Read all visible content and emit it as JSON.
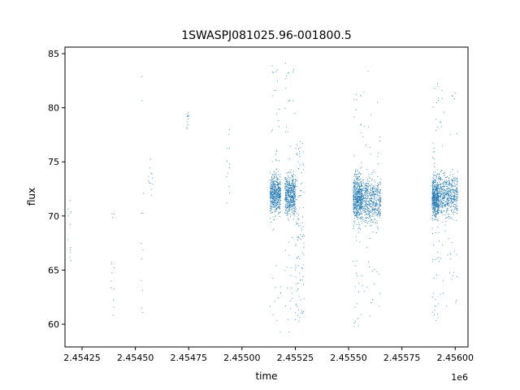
{
  "chart_data": {
    "type": "scatter",
    "title": "1SWASPJ081025.96-001800.5",
    "xlabel": "time",
    "ylabel": "flux",
    "x_offset_label": "1e6",
    "xlim": [
      2.45417,
      2.45606
    ],
    "ylim": [
      57.9,
      85.6
    ],
    "xticks": [
      2.45425,
      2.4545,
      2.45475,
      2.455,
      2.45525,
      2.4555,
      2.45575,
      2.456
    ],
    "xtick_labels": [
      "2.45425",
      "2.45450",
      "2.45475",
      "2.45500",
      "2.45525",
      "2.45550",
      "2.45575",
      "2.45600"
    ],
    "yticks": [
      60,
      65,
      70,
      75,
      80,
      85
    ],
    "ytick_labels": [
      "60",
      "65",
      "70",
      "75",
      "80",
      "85"
    ],
    "grid": false,
    "marker_color": "#1f77b4",
    "clusters": [
      {
        "x_range": [
          2.45418,
          2.4542
        ],
        "y_range": [
          64.6,
          71.5
        ],
        "density": "sparse"
      },
      {
        "x_range": [
          2.45438,
          2.4544
        ],
        "y_range": [
          59.5,
          71.8
        ],
        "density": "sparse"
      },
      {
        "x_range": [
          2.45452,
          2.45454
        ],
        "y_range": [
          61.0,
          84.2
        ],
        "density": "sparse"
      },
      {
        "x_range": [
          2.45456,
          2.45458
        ],
        "y_range": [
          70.5,
          75.5
        ],
        "density": "sparse"
      },
      {
        "x_range": [
          2.45474,
          2.45475
        ],
        "y_range": [
          77.6,
          79.6
        ],
        "density": "sparse"
      },
      {
        "x_range": [
          2.45492,
          2.45495
        ],
        "y_range": [
          71.2,
          78.6
        ],
        "density": "sparse"
      },
      {
        "x_range": [
          2.45513,
          2.45518
        ],
        "y_range": [
          68.0,
          76.0
        ],
        "core_range": [
          68.5,
          75.5
        ],
        "outlier_range": [
          59.2,
          84.2
        ],
        "density": "dense"
      },
      {
        "x_range": [
          2.4552,
          2.45525
        ],
        "y_range": [
          68.0,
          76.0
        ],
        "core_range": [
          68.5,
          75.5
        ],
        "outlier_range": [
          59.2,
          84.2
        ],
        "density": "dense"
      },
      {
        "x_range": [
          2.45525,
          2.45529
        ],
        "y_range": [
          60.0,
          77.0
        ],
        "density": "medium"
      },
      {
        "x_range": [
          2.45552,
          2.45556
        ],
        "y_range": [
          66.5,
          76.0
        ],
        "core_range": [
          67.5,
          76.0
        ],
        "outlier_range": [
          59.5,
          82.5
        ],
        "density": "dense"
      },
      {
        "x_range": [
          2.45556,
          2.45565
        ],
        "y_range": [
          66.5,
          76.0
        ],
        "core_range": [
          67.5,
          75.5
        ],
        "outlier_range": [
          59.5,
          83.7
        ],
        "density": "dense"
      },
      {
        "x_range": [
          2.45589,
          2.45592
        ],
        "y_range": [
          67.5,
          76.0
        ],
        "core_range": [
          68.0,
          75.5
        ],
        "outlier_range": [
          59.4,
          83.0
        ],
        "density": "dense"
      },
      {
        "x_range": [
          2.45592,
          2.45601
        ],
        "y_range": [
          67.5,
          77.0
        ],
        "core_range": [
          68.0,
          76.0
        ],
        "outlier_range": [
          61.5,
          82.2
        ],
        "density": "dense"
      }
    ]
  }
}
